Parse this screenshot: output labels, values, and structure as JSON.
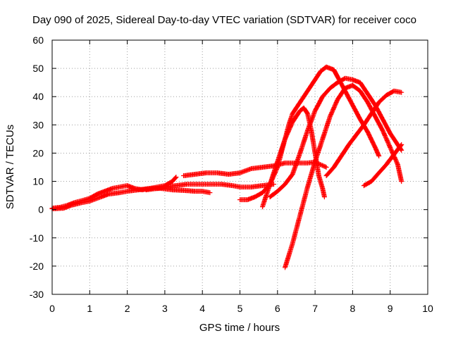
{
  "chart_data": {
    "type": "scatter",
    "title": "Day 090 of 2025, Sidereal Day-to-day VTEC variation (SDTVAR) for receiver coco",
    "xlabel": "GPS time / hours",
    "ylabel": "SDTVAR / TECUs",
    "xlim": [
      0,
      10
    ],
    "ylim": [
      -30,
      60
    ],
    "xticks": [
      0,
      1,
      2,
      3,
      4,
      5,
      6,
      7,
      8,
      9,
      10
    ],
    "yticks": [
      -30,
      -20,
      -10,
      0,
      10,
      20,
      30,
      40,
      50,
      60
    ],
    "grid": true,
    "legend": "none",
    "marker_color": "#ff0000",
    "marker": "plus",
    "series": [
      {
        "values": [
          [
            0.0,
            0.5
          ],
          [
            0.2,
            0.8
          ],
          [
            0.4,
            1.5
          ],
          [
            0.6,
            2.5
          ],
          [
            0.8,
            3.2
          ],
          [
            1.0,
            4.0
          ],
          [
            1.2,
            5.5
          ],
          [
            1.4,
            6.5
          ],
          [
            1.6,
            7.5
          ],
          [
            1.8,
            8.0
          ],
          [
            2.0,
            8.5
          ],
          [
            2.2,
            7.5
          ],
          [
            2.4,
            7.0
          ],
          [
            2.6,
            7.5
          ],
          [
            2.8,
            8.0
          ],
          [
            3.0,
            8.5
          ],
          [
            3.2,
            10.0
          ],
          [
            3.3,
            11.5
          ]
        ]
      },
      {
        "values": [
          [
            0.0,
            0.3
          ],
          [
            0.3,
            0.5
          ],
          [
            0.5,
            1.5
          ],
          [
            0.8,
            2.5
          ],
          [
            1.0,
            3.0
          ],
          [
            1.3,
            4.5
          ],
          [
            1.5,
            5.5
          ],
          [
            1.8,
            6.0
          ],
          [
            2.0,
            6.5
          ],
          [
            2.3,
            7.0
          ],
          [
            2.6,
            7.5
          ],
          [
            2.9,
            7.5
          ],
          [
            3.2,
            7.0
          ],
          [
            3.5,
            6.8
          ],
          [
            3.8,
            6.5
          ],
          [
            4.0,
            6.5
          ],
          [
            4.2,
            6.0
          ]
        ]
      },
      {
        "values": [
          [
            2.5,
            7.0
          ],
          [
            2.8,
            7.5
          ],
          [
            3.0,
            8.0
          ],
          [
            3.3,
            8.5
          ],
          [
            3.6,
            9.0
          ],
          [
            3.9,
            9.0
          ],
          [
            4.2,
            9.0
          ],
          [
            4.5,
            9.0
          ],
          [
            4.8,
            8.5
          ],
          [
            5.0,
            8.0
          ],
          [
            5.3,
            8.0
          ],
          [
            5.6,
            8.5
          ],
          [
            5.9,
            9.0
          ]
        ]
      },
      {
        "values": [
          [
            3.5,
            12.0
          ],
          [
            3.8,
            12.5
          ],
          [
            4.1,
            13.0
          ],
          [
            4.4,
            13.0
          ],
          [
            4.7,
            12.5
          ],
          [
            5.0,
            13.0
          ],
          [
            5.3,
            14.5
          ],
          [
            5.6,
            15.0
          ],
          [
            5.9,
            15.5
          ],
          [
            6.2,
            16.5
          ],
          [
            6.5,
            16.5
          ],
          [
            6.8,
            16.5
          ],
          [
            7.0,
            16.8
          ],
          [
            7.3,
            15.0
          ]
        ]
      },
      {
        "values": [
          [
            5.0,
            3.5
          ],
          [
            5.2,
            3.5
          ],
          [
            5.4,
            4.5
          ],
          [
            5.6,
            6.0
          ],
          [
            5.8,
            9.0
          ],
          [
            6.0,
            15.0
          ],
          [
            6.1,
            20.0
          ],
          [
            6.2,
            25.0
          ],
          [
            6.3,
            30.0
          ],
          [
            6.4,
            34.0
          ],
          [
            6.6,
            38.0
          ],
          [
            6.8,
            42.0
          ],
          [
            7.0,
            46.0
          ],
          [
            7.15,
            49.0
          ],
          [
            7.3,
            50.5
          ],
          [
            7.5,
            49.5
          ],
          [
            7.6,
            47.0
          ],
          [
            7.8,
            42.0
          ],
          [
            8.0,
            37.0
          ],
          [
            8.2,
            32.0
          ],
          [
            8.4,
            27.5
          ],
          [
            8.6,
            22.0
          ],
          [
            8.7,
            19.0
          ]
        ]
      },
      {
        "values": [
          [
            5.6,
            1.0
          ],
          [
            5.8,
            9.0
          ],
          [
            6.0,
            17.0
          ],
          [
            6.2,
            25.0
          ],
          [
            6.4,
            31.0
          ],
          [
            6.6,
            35.0
          ],
          [
            6.7,
            36.0
          ],
          [
            6.8,
            34.0
          ],
          [
            6.9,
            28.0
          ],
          [
            7.0,
            20.0
          ],
          [
            7.1,
            12.0
          ],
          [
            7.2,
            7.5
          ],
          [
            7.25,
            4.5
          ]
        ]
      },
      {
        "values": [
          [
            6.2,
            -20.5
          ],
          [
            6.4,
            -12.0
          ],
          [
            6.6,
            -2.0
          ],
          [
            6.8,
            8.0
          ],
          [
            7.0,
            17.0
          ],
          [
            7.2,
            25.0
          ],
          [
            7.4,
            33.0
          ],
          [
            7.6,
            39.0
          ],
          [
            7.8,
            43.0
          ],
          [
            8.0,
            44.0
          ],
          [
            8.2,
            42.0
          ],
          [
            8.4,
            38.0
          ],
          [
            8.6,
            33.0
          ],
          [
            8.8,
            28.0
          ],
          [
            9.0,
            22.0
          ],
          [
            9.2,
            16.0
          ],
          [
            9.3,
            10.0
          ]
        ]
      },
      {
        "values": [
          [
            5.8,
            4.5
          ],
          [
            6.0,
            6.5
          ],
          [
            6.2,
            9.0
          ],
          [
            6.4,
            12.5
          ],
          [
            6.6,
            20.0
          ],
          [
            6.8,
            28.0
          ],
          [
            7.0,
            35.0
          ],
          [
            7.2,
            40.0
          ],
          [
            7.4,
            43.0
          ],
          [
            7.6,
            45.0
          ],
          [
            7.8,
            46.5
          ],
          [
            8.0,
            46.0
          ],
          [
            8.2,
            45.0
          ],
          [
            8.4,
            41.0
          ],
          [
            8.6,
            37.0
          ],
          [
            8.8,
            32.0
          ],
          [
            9.0,
            27.0
          ],
          [
            9.2,
            23.0
          ],
          [
            9.3,
            21.0
          ]
        ]
      },
      {
        "values": [
          [
            7.3,
            12.0
          ],
          [
            7.5,
            15.0
          ],
          [
            7.7,
            19.0
          ],
          [
            7.9,
            23.0
          ],
          [
            8.1,
            26.5
          ],
          [
            8.3,
            30.0
          ],
          [
            8.5,
            34.0
          ],
          [
            8.7,
            38.0
          ],
          [
            8.9,
            40.5
          ],
          [
            9.1,
            42.0
          ],
          [
            9.3,
            41.5
          ]
        ]
      },
      {
        "values": [
          [
            8.3,
            8.5
          ],
          [
            8.5,
            10.0
          ],
          [
            8.7,
            13.0
          ],
          [
            8.9,
            16.0
          ],
          [
            9.1,
            19.5
          ],
          [
            9.3,
            23.0
          ]
        ]
      }
    ]
  }
}
